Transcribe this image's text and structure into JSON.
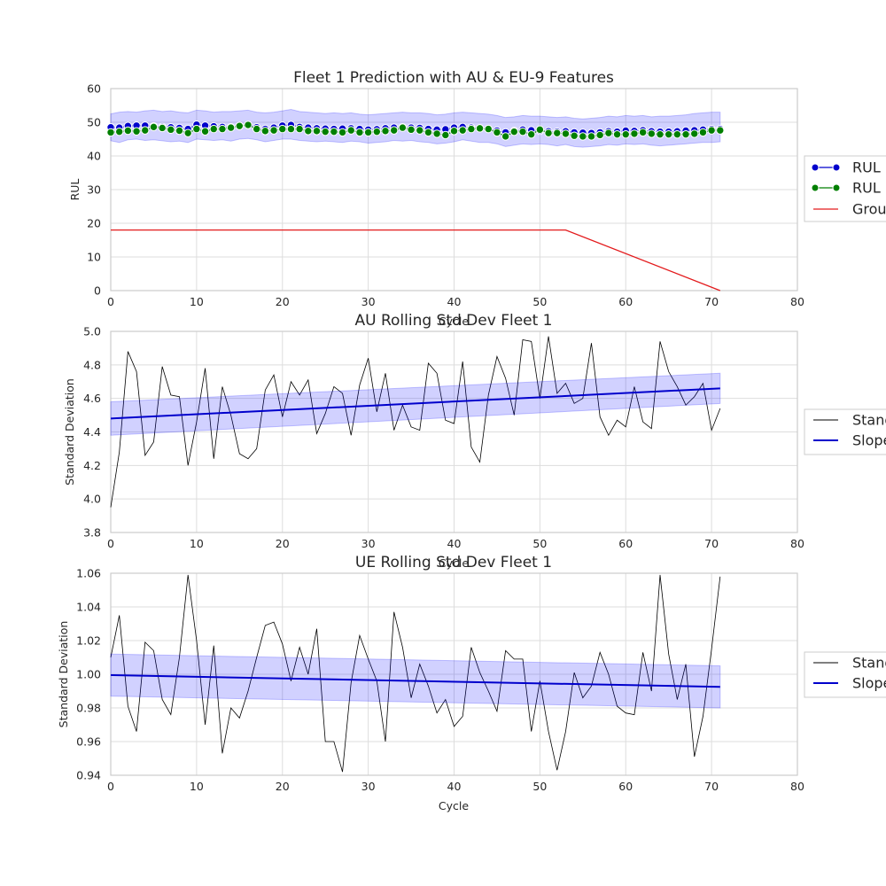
{
  "chart_data": [
    {
      "type": "line",
      "title": "Fleet 1 Prediction with AU & EU-9 Features",
      "xlabel": "Cycle",
      "ylabel": "RUL",
      "xlim": [
        0,
        80
      ],
      "ylim": [
        0,
        60
      ],
      "xticks": [
        0,
        10,
        20,
        30,
        40,
        50,
        60,
        70,
        80
      ],
      "yticks": [
        0,
        10,
        20,
        30,
        40,
        50,
        60
      ],
      "grid": true,
      "legend_position": "right, outside",
      "series": [
        {
          "name": "RUL",
          "style": "markers-line",
          "color": "#0000cc",
          "x": [
            0,
            1,
            2,
            3,
            4,
            5,
            6,
            7,
            8,
            9,
            10,
            11,
            12,
            13,
            14,
            15,
            16,
            17,
            18,
            19,
            20,
            21,
            22,
            23,
            24,
            25,
            26,
            27,
            28,
            29,
            30,
            31,
            32,
            33,
            34,
            35,
            36,
            37,
            38,
            39,
            40,
            41,
            42,
            43,
            44,
            45,
            46,
            47,
            48,
            49,
            50,
            51,
            52,
            53,
            54,
            55,
            56,
            57,
            58,
            59,
            60,
            61,
            62,
            63,
            64,
            65,
            66,
            67,
            68,
            69,
            70,
            71
          ],
          "values": [
            48.5,
            48.4,
            48.9,
            49.0,
            49.0,
            48.8,
            48.6,
            48.5,
            48.3,
            48.0,
            49.3,
            49.0,
            48.8,
            48.6,
            48.5,
            48.9,
            49.2,
            48.5,
            48.0,
            48.4,
            49.0,
            49.2,
            48.6,
            48.4,
            48.2,
            48.1,
            48.0,
            48.1,
            48.2,
            48.0,
            47.8,
            47.9,
            48.2,
            48.4,
            48.5,
            48.4,
            48.3,
            48.0,
            47.8,
            47.9,
            48.4,
            48.6,
            48.4,
            48.2,
            48.0,
            47.5,
            47.0,
            47.4,
            47.8,
            47.6,
            47.5,
            47.3,
            47.2,
            47.3,
            47.0,
            46.9,
            46.8,
            47.0,
            47.3,
            47.2,
            47.5,
            47.4,
            47.6,
            47.3,
            47.2,
            47.2,
            47.3,
            47.5,
            47.6,
            47.8,
            48.0,
            48.0
          ],
          "band": [
            [
              44.5,
              52.5
            ],
            [
              44.0,
              53.0
            ],
            [
              44.8,
              53.2
            ],
            [
              45.0,
              53.0
            ],
            [
              44.6,
              53.4
            ],
            [
              44.8,
              53.6
            ],
            [
              44.5,
              53.2
            ],
            [
              44.2,
              53.4
            ],
            [
              44.4,
              53.0
            ],
            [
              44.0,
              52.8
            ],
            [
              45.0,
              53.6
            ],
            [
              44.8,
              53.4
            ],
            [
              44.6,
              53.0
            ],
            [
              44.8,
              53.2
            ],
            [
              44.4,
              53.2
            ],
            [
              45.0,
              53.4
            ],
            [
              45.2,
              53.6
            ],
            [
              44.8,
              53.0
            ],
            [
              44.2,
              52.8
            ],
            [
              44.6,
              53.0
            ],
            [
              45.0,
              53.4
            ],
            [
              45.0,
              53.8
            ],
            [
              44.6,
              53.2
            ],
            [
              44.4,
              53.0
            ],
            [
              44.2,
              52.8
            ],
            [
              44.4,
              52.6
            ],
            [
              44.2,
              52.8
            ],
            [
              44.0,
              52.6
            ],
            [
              44.4,
              52.8
            ],
            [
              44.2,
              52.4
            ],
            [
              43.8,
              52.2
            ],
            [
              44.0,
              52.4
            ],
            [
              44.2,
              52.6
            ],
            [
              44.6,
              52.8
            ],
            [
              44.4,
              53.0
            ],
            [
              44.6,
              52.8
            ],
            [
              44.2,
              52.8
            ],
            [
              44.0,
              52.6
            ],
            [
              43.6,
              52.2
            ],
            [
              43.8,
              52.4
            ],
            [
              44.2,
              52.8
            ],
            [
              44.8,
              53.0
            ],
            [
              44.4,
              52.8
            ],
            [
              44.0,
              52.6
            ],
            [
              44.0,
              52.4
            ],
            [
              43.6,
              52.0
            ],
            [
              42.8,
              51.4
            ],
            [
              43.2,
              51.6
            ],
            [
              43.6,
              52.0
            ],
            [
              43.4,
              51.8
            ],
            [
              43.6,
              51.8
            ],
            [
              43.4,
              51.6
            ],
            [
              43.0,
              51.4
            ],
            [
              43.4,
              51.6
            ],
            [
              42.8,
              51.2
            ],
            [
              42.6,
              51.0
            ],
            [
              42.8,
              51.2
            ],
            [
              43.0,
              51.4
            ],
            [
              43.4,
              51.8
            ],
            [
              43.2,
              51.6
            ],
            [
              43.6,
              52.0
            ],
            [
              43.4,
              51.8
            ],
            [
              43.6,
              52.0
            ],
            [
              43.2,
              51.6
            ],
            [
              43.0,
              51.8
            ],
            [
              43.2,
              51.8
            ],
            [
              43.4,
              52.0
            ],
            [
              43.6,
              52.2
            ],
            [
              43.8,
              52.6
            ],
            [
              44.0,
              52.8
            ],
            [
              44.0,
              53.0
            ],
            [
              44.2,
              53.0
            ]
          ]
        },
        {
          "name": "RUL",
          "style": "markers-line",
          "color": "#007f00",
          "x": [
            0,
            1,
            2,
            3,
            4,
            5,
            6,
            7,
            8,
            9,
            10,
            11,
            12,
            13,
            14,
            15,
            16,
            17,
            18,
            19,
            20,
            21,
            22,
            23,
            24,
            25,
            26,
            27,
            28,
            29,
            30,
            31,
            32,
            33,
            34,
            35,
            36,
            37,
            38,
            39,
            40,
            41,
            42,
            43,
            44,
            45,
            46,
            47,
            48,
            49,
            50,
            51,
            52,
            53,
            54,
            55,
            56,
            57,
            58,
            59,
            60,
            61,
            62,
            63,
            64,
            65,
            66,
            67,
            68,
            69,
            70,
            71
          ],
          "values": [
            47.0,
            47.2,
            47.5,
            47.3,
            47.6,
            48.6,
            48.3,
            47.8,
            47.5,
            46.8,
            48.0,
            47.3,
            48.0,
            48.0,
            48.4,
            48.9,
            49.2,
            48.0,
            47.4,
            47.6,
            48.0,
            48.0,
            48.0,
            47.4,
            47.4,
            47.2,
            47.2,
            47.0,
            47.6,
            47.0,
            47.0,
            47.2,
            47.4,
            47.6,
            48.4,
            47.8,
            47.6,
            47.0,
            46.6,
            46.2,
            47.4,
            47.6,
            48.0,
            48.2,
            48.0,
            47.0,
            45.8,
            47.2,
            47.2,
            46.4,
            47.8,
            46.8,
            46.8,
            46.6,
            46.0,
            45.8,
            45.8,
            46.2,
            46.8,
            46.4,
            46.4,
            46.6,
            47.0,
            46.6,
            46.4,
            46.4,
            46.4,
            46.4,
            46.6,
            47.0,
            47.6,
            47.6
          ]
        },
        {
          "name": "Grou",
          "style": "line",
          "color": "#e31a1c",
          "x": [
            0,
            53,
            71
          ],
          "values": [
            18,
            18,
            0
          ]
        }
      ]
    },
    {
      "type": "line",
      "title": "AU Rolling Std Dev Fleet 1",
      "xlabel": "Cycle",
      "ylabel": "Standard Deviation",
      "xlim": [
        0,
        80
      ],
      "ylim": [
        3.8,
        5.0
      ],
      "xticks": [
        0,
        10,
        20,
        30,
        40,
        50,
        60,
        70,
        80
      ],
      "yticks": [
        "3.8",
        "4.0",
        "4.2",
        "4.4",
        "4.6",
        "4.8",
        "5.0"
      ],
      "grid": true,
      "legend_position": "right, outside",
      "series": [
        {
          "name": "Stand",
          "style": "thin-line",
          "color": "#000000",
          "x": [
            0,
            1,
            2,
            3,
            4,
            5,
            6,
            7,
            8,
            9,
            10,
            11,
            12,
            13,
            14,
            15,
            16,
            17,
            18,
            19,
            20,
            21,
            22,
            23,
            24,
            25,
            26,
            27,
            28,
            29,
            30,
            31,
            32,
            33,
            34,
            35,
            36,
            37,
            38,
            39,
            40,
            41,
            42,
            43,
            44,
            45,
            46,
            47,
            48,
            49,
            50,
            51,
            52,
            53,
            54,
            55,
            56,
            57,
            58,
            59,
            60,
            61,
            62,
            63,
            64,
            65,
            66,
            67,
            68,
            69,
            70,
            71
          ],
          "values": [
            3.95,
            4.28,
            4.88,
            4.76,
            4.26,
            4.34,
            4.79,
            4.62,
            4.61,
            4.2,
            4.46,
            4.78,
            4.24,
            4.67,
            4.5,
            4.27,
            4.24,
            4.3,
            4.65,
            4.74,
            4.49,
            4.7,
            4.62,
            4.71,
            4.39,
            4.51,
            4.67,
            4.63,
            4.38,
            4.68,
            4.84,
            4.52,
            4.75,
            4.41,
            4.56,
            4.43,
            4.41,
            4.81,
            4.75,
            4.47,
            4.45,
            4.82,
            4.31,
            4.22,
            4.62,
            4.85,
            4.72,
            4.5,
            4.95,
            4.94,
            4.6,
            4.97,
            4.63,
            4.69,
            4.57,
            4.6,
            4.93,
            4.49,
            4.38,
            4.47,
            4.43,
            4.67,
            4.46,
            4.42,
            4.94,
            4.76,
            4.67,
            4.56,
            4.61,
            4.69,
            4.41,
            4.54
          ]
        },
        {
          "name": "Slope",
          "style": "thick-line",
          "color": "#0000cc",
          "x": [
            0,
            71
          ],
          "values": [
            4.48,
            4.66
          ],
          "band": [
            [
              4.38,
              4.58
            ],
            [
              4.57,
              4.75
            ]
          ]
        }
      ]
    },
    {
      "type": "line",
      "title": "UE Rolling Std Dev Fleet 1",
      "xlabel": "Cycle",
      "ylabel": "Standard Deviation",
      "xlim": [
        0,
        80
      ],
      "ylim": [
        0.94,
        1.06
      ],
      "xticks": [
        0,
        10,
        20,
        30,
        40,
        50,
        60,
        70,
        80
      ],
      "yticks": [
        "0.94",
        "0.96",
        "0.98",
        "1.00",
        "1.02",
        "1.04",
        "1.06"
      ],
      "grid": true,
      "legend_position": "right, outside",
      "series": [
        {
          "name": "Stand",
          "style": "thin-line",
          "color": "#000000",
          "x": [
            0,
            1,
            2,
            3,
            4,
            5,
            6,
            7,
            8,
            9,
            10,
            11,
            12,
            13,
            14,
            15,
            16,
            17,
            18,
            19,
            20,
            21,
            22,
            23,
            24,
            25,
            26,
            27,
            28,
            29,
            30,
            31,
            32,
            33,
            34,
            35,
            36,
            37,
            38,
            39,
            40,
            41,
            42,
            43,
            44,
            45,
            46,
            47,
            48,
            49,
            50,
            51,
            52,
            53,
            54,
            55,
            56,
            57,
            58,
            59,
            60,
            61,
            62,
            63,
            64,
            65,
            66,
            67,
            68,
            69,
            70,
            71
          ],
          "values": [
            1.01,
            1.035,
            0.981,
            0.966,
            1.019,
            1.014,
            0.985,
            0.976,
            1.01,
            1.059,
            1.02,
            0.97,
            1.017,
            0.953,
            0.98,
            0.974,
            0.99,
            1.01,
            1.029,
            1.031,
            1.018,
            0.996,
            1.016,
            1.0,
            1.027,
            0.96,
            0.96,
            0.942,
            0.995,
            1.023,
            1.009,
            0.996,
            0.96,
            1.037,
            1.016,
            0.986,
            1.006,
            0.993,
            0.977,
            0.985,
            0.969,
            0.975,
            1.016,
            1.001,
            0.99,
            0.978,
            1.014,
            1.009,
            1.009,
            0.966,
            0.996,
            0.966,
            0.943,
            0.966,
            1.001,
            0.986,
            0.993,
            1.013,
            1.0,
            0.981,
            0.977,
            0.976,
            1.013,
            0.99,
            1.059,
            1.012,
            0.985,
            1.006,
            0.951,
            0.975,
            1.015,
            1.058
          ]
        },
        {
          "name": "Slope",
          "style": "thick-line",
          "color": "#0000cc",
          "x": [
            0,
            71
          ],
          "values": [
            0.9995,
            0.9925
          ],
          "band": [
            [
              0.987,
              1.012
            ],
            [
              0.98,
              1.005
            ]
          ]
        }
      ]
    }
  ]
}
